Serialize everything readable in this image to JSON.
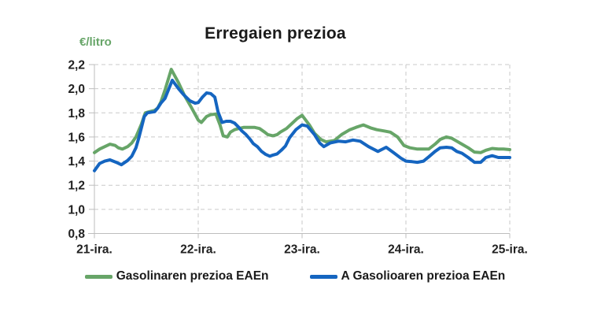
{
  "chart_data": {
    "type": "line",
    "title": "Erregaien prezioa",
    "ylabel": "€/litro",
    "xlabel": "",
    "ylim": [
      0.8,
      2.2
    ],
    "ytick_step": 0.2,
    "ytick_labels": [
      "0,8",
      "1,0",
      "1,2",
      "1,4",
      "1,6",
      "1,8",
      "2,0",
      "2,2"
    ],
    "x_ticks": [
      "21-ira.",
      "22-ira.",
      "23-ira.",
      "24-ira.",
      "25-ira."
    ],
    "x_range_days": [
      0,
      4
    ],
    "grid": true,
    "gridline_style": "dashed",
    "legend_position": "bottom",
    "axis_color": "#bdbdbd",
    "grid_color": "#c9c9c9",
    "text_color": "#212121",
    "series": [
      {
        "name": "Gasolinaren prezioa EAEn",
        "color": "#67a568",
        "points": [
          [
            0.0,
            1.47
          ],
          [
            0.05,
            1.5
          ],
          [
            0.1,
            1.52
          ],
          [
            0.15,
            1.54
          ],
          [
            0.2,
            1.53
          ],
          [
            0.23,
            1.51
          ],
          [
            0.27,
            1.5
          ],
          [
            0.32,
            1.52
          ],
          [
            0.36,
            1.55
          ],
          [
            0.4,
            1.6
          ],
          [
            0.45,
            1.7
          ],
          [
            0.49,
            1.8
          ],
          [
            0.53,
            1.81
          ],
          [
            0.58,
            1.82
          ],
          [
            0.61,
            1.84
          ],
          [
            0.64,
            1.89
          ],
          [
            0.68,
            1.99
          ],
          [
            0.74,
            2.16
          ],
          [
            0.81,
            2.05
          ],
          [
            0.87,
            1.94
          ],
          [
            0.93,
            1.85
          ],
          [
            1.0,
            1.74
          ],
          [
            1.03,
            1.72
          ],
          [
            1.08,
            1.77
          ],
          [
            1.12,
            1.785
          ],
          [
            1.17,
            1.79
          ],
          [
            1.21,
            1.7
          ],
          [
            1.24,
            1.61
          ],
          [
            1.28,
            1.6
          ],
          [
            1.31,
            1.64
          ],
          [
            1.35,
            1.66
          ],
          [
            1.39,
            1.67
          ],
          [
            1.44,
            1.68
          ],
          [
            1.49,
            1.68
          ],
          [
            1.54,
            1.68
          ],
          [
            1.59,
            1.67
          ],
          [
            1.64,
            1.64
          ],
          [
            1.67,
            1.62
          ],
          [
            1.72,
            1.61
          ],
          [
            1.76,
            1.62
          ],
          [
            1.79,
            1.64
          ],
          [
            1.85,
            1.67
          ],
          [
            1.9,
            1.71
          ],
          [
            1.95,
            1.75
          ],
          [
            2.0,
            1.78
          ],
          [
            2.07,
            1.7
          ],
          [
            2.12,
            1.63
          ],
          [
            2.18,
            1.58
          ],
          [
            2.23,
            1.56
          ],
          [
            2.31,
            1.57
          ],
          [
            2.38,
            1.62
          ],
          [
            2.46,
            1.66
          ],
          [
            2.52,
            1.68
          ],
          [
            2.59,
            1.7
          ],
          [
            2.66,
            1.675
          ],
          [
            2.72,
            1.66
          ],
          [
            2.79,
            1.65
          ],
          [
            2.85,
            1.64
          ],
          [
            2.92,
            1.6
          ],
          [
            2.98,
            1.53
          ],
          [
            3.04,
            1.51
          ],
          [
            3.11,
            1.5
          ],
          [
            3.17,
            1.5
          ],
          [
            3.22,
            1.5
          ],
          [
            3.28,
            1.54
          ],
          [
            3.33,
            1.58
          ],
          [
            3.39,
            1.6
          ],
          [
            3.44,
            1.59
          ],
          [
            3.49,
            1.565
          ],
          [
            3.54,
            1.54
          ],
          [
            3.6,
            1.51
          ],
          [
            3.66,
            1.475
          ],
          [
            3.72,
            1.47
          ],
          [
            3.77,
            1.49
          ],
          [
            3.83,
            1.505
          ],
          [
            3.89,
            1.5
          ],
          [
            3.94,
            1.5
          ],
          [
            4.0,
            1.495
          ]
        ]
      },
      {
        "name": "A Gasolioaren prezioa EAEn",
        "color": "#1565c0",
        "points": [
          [
            0.0,
            1.32
          ],
          [
            0.05,
            1.38
          ],
          [
            0.1,
            1.4
          ],
          [
            0.15,
            1.41
          ],
          [
            0.21,
            1.39
          ],
          [
            0.26,
            1.37
          ],
          [
            0.32,
            1.405
          ],
          [
            0.36,
            1.44
          ],
          [
            0.4,
            1.51
          ],
          [
            0.43,
            1.6
          ],
          [
            0.46,
            1.7
          ],
          [
            0.48,
            1.77
          ],
          [
            0.51,
            1.8
          ],
          [
            0.58,
            1.81
          ],
          [
            0.61,
            1.84
          ],
          [
            0.64,
            1.88
          ],
          [
            0.68,
            1.92
          ],
          [
            0.75,
            2.07
          ],
          [
            0.81,
            2.0
          ],
          [
            0.86,
            1.95
          ],
          [
            0.92,
            1.9
          ],
          [
            0.97,
            1.88
          ],
          [
            1.0,
            1.885
          ],
          [
            1.04,
            1.93
          ],
          [
            1.08,
            1.965
          ],
          [
            1.12,
            1.96
          ],
          [
            1.16,
            1.93
          ],
          [
            1.19,
            1.81
          ],
          [
            1.23,
            1.72
          ],
          [
            1.27,
            1.73
          ],
          [
            1.31,
            1.73
          ],
          [
            1.35,
            1.715
          ],
          [
            1.39,
            1.68
          ],
          [
            1.42,
            1.65
          ],
          [
            1.46,
            1.62
          ],
          [
            1.5,
            1.58
          ],
          [
            1.53,
            1.545
          ],
          [
            1.57,
            1.52
          ],
          [
            1.61,
            1.48
          ],
          [
            1.65,
            1.455
          ],
          [
            1.69,
            1.44
          ],
          [
            1.72,
            1.45
          ],
          [
            1.76,
            1.46
          ],
          [
            1.8,
            1.49
          ],
          [
            1.84,
            1.525
          ],
          [
            1.88,
            1.595
          ],
          [
            1.94,
            1.66
          ],
          [
            2.0,
            1.7
          ],
          [
            2.05,
            1.69
          ],
          [
            2.12,
            1.62
          ],
          [
            2.17,
            1.55
          ],
          [
            2.21,
            1.52
          ],
          [
            2.27,
            1.55
          ],
          [
            2.35,
            1.565
          ],
          [
            2.42,
            1.56
          ],
          [
            2.49,
            1.575
          ],
          [
            2.56,
            1.565
          ],
          [
            2.64,
            1.52
          ],
          [
            2.73,
            1.48
          ],
          [
            2.81,
            1.515
          ],
          [
            2.88,
            1.47
          ],
          [
            2.95,
            1.425
          ],
          [
            3.0,
            1.4
          ],
          [
            3.06,
            1.395
          ],
          [
            3.11,
            1.39
          ],
          [
            3.17,
            1.4
          ],
          [
            3.22,
            1.435
          ],
          [
            3.28,
            1.48
          ],
          [
            3.33,
            1.51
          ],
          [
            3.39,
            1.515
          ],
          [
            3.44,
            1.51
          ],
          [
            3.49,
            1.48
          ],
          [
            3.54,
            1.465
          ],
          [
            3.6,
            1.43
          ],
          [
            3.66,
            1.39
          ],
          [
            3.72,
            1.39
          ],
          [
            3.77,
            1.43
          ],
          [
            3.83,
            1.445
          ],
          [
            3.89,
            1.43
          ],
          [
            3.94,
            1.43
          ],
          [
            4.0,
            1.43
          ]
        ]
      }
    ]
  }
}
